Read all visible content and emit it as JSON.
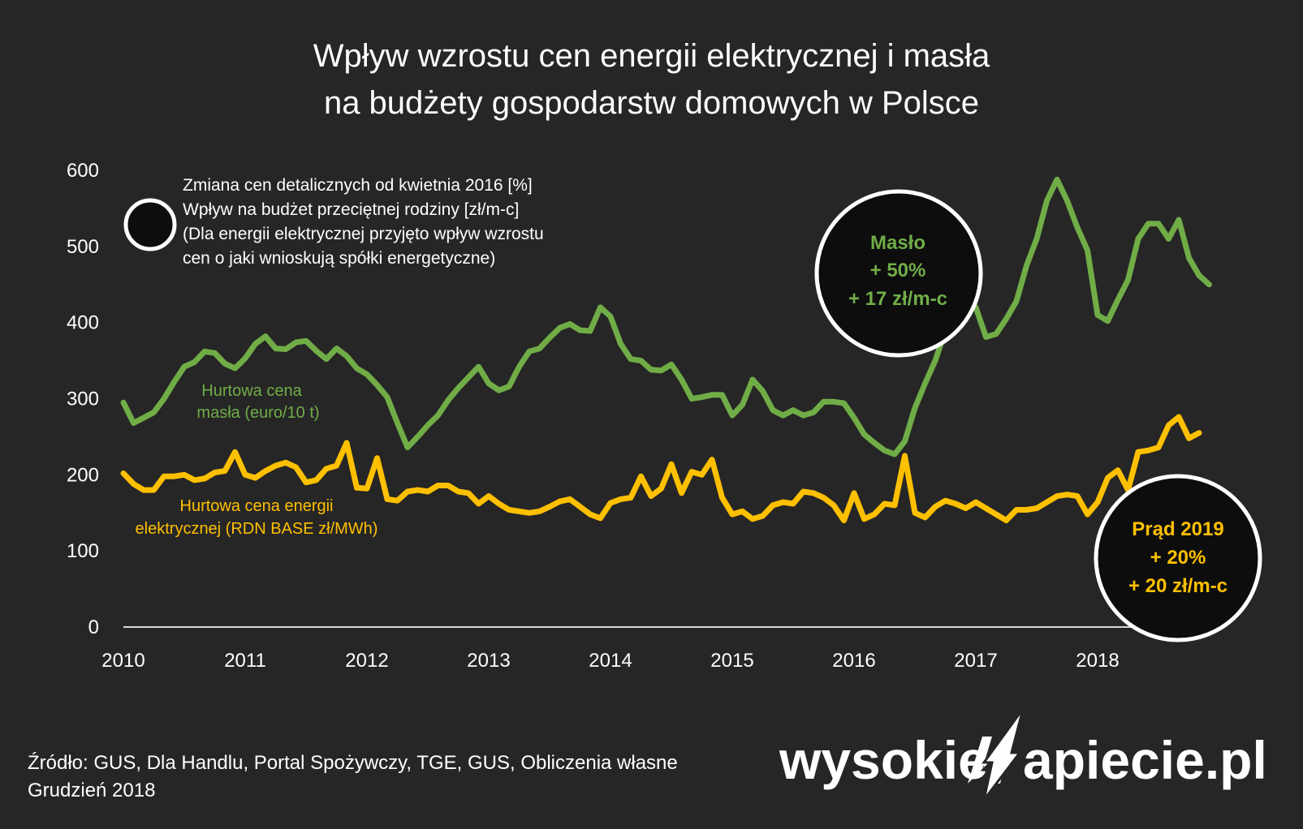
{
  "chart_data": {
    "type": "line",
    "title_line1": "Wpływ wzrostu cen energii elektrycznej i masła",
    "title_line2": "na budżety gospodarstw domowych w Polsce",
    "y_ticks": [
      "0",
      "100",
      "200",
      "300",
      "400",
      "500",
      "600"
    ],
    "x_ticks": [
      "2010",
      "2011",
      "2012",
      "2013",
      "2014",
      "2015",
      "2016",
      "2017",
      "2018"
    ],
    "ylim": [
      0,
      600
    ],
    "xlim": [
      2010,
      2019
    ],
    "colors": {
      "butter": "#70ad47",
      "energy": "#ffc000",
      "axis": "#d9d9d9"
    },
    "series": [
      {
        "name": "Hurtowa cena masła (euro/10 t)",
        "label_line1": "Hurtowa cena",
        "label_line2": "masła (euro/10 t)",
        "color": "#70ad47",
        "values": [
          295,
          268,
          275,
          282,
          300,
          322,
          342,
          348,
          362,
          360,
          346,
          340,
          353,
          372,
          382,
          366,
          365,
          374,
          376,
          363,
          352,
          366,
          356,
          340,
          332,
          318,
          302,
          268,
          236,
          250,
          265,
          278,
          298,
          314,
          328,
          342,
          320,
          311,
          316,
          342,
          362,
          366,
          380,
          393,
          398,
          390,
          389,
          420,
          408,
          372,
          352,
          350,
          338,
          337,
          345,
          325,
          300,
          302,
          305,
          305,
          278,
          292,
          325,
          310,
          285,
          278,
          285,
          278,
          282,
          296,
          296,
          294,
          275,
          253,
          242,
          232,
          227,
          244,
          288,
          320,
          350,
          390,
          410,
          435,
          420,
          381,
          385,
          405,
          428,
          475,
          510,
          560,
          588,
          560,
          525,
          495,
          410,
          402,
          430,
          456,
          510,
          530,
          530,
          510,
          535,
          485,
          462,
          450
        ]
      },
      {
        "name": "Hurtowa cena energii elektrycznej (RDN BASE zł/MWh)",
        "label_line1": "Hurtowa cena energii",
        "label_line2": "elektrycznej (RDN BASE zł/MWh)",
        "color": "#ffc000",
        "values": [
          202,
          188,
          180,
          180,
          198,
          198,
          200,
          193,
          195,
          203,
          205,
          230,
          200,
          196,
          205,
          212,
          216,
          210,
          190,
          193,
          208,
          212,
          242,
          183,
          182,
          222,
          168,
          166,
          178,
          180,
          178,
          186,
          186,
          178,
          176,
          162,
          172,
          162,
          154,
          152,
          150,
          152,
          158,
          165,
          168,
          158,
          148,
          143,
          163,
          168,
          170,
          198,
          172,
          182,
          214,
          176,
          204,
          200,
          220,
          170,
          148,
          152,
          142,
          146,
          160,
          164,
          162,
          178,
          176,
          170,
          160,
          140,
          176,
          142,
          148,
          162,
          160,
          225,
          150,
          144,
          158,
          166,
          162,
          156,
          164,
          156,
          148,
          140,
          154,
          154,
          156,
          164,
          172,
          174,
          172,
          148,
          164,
          196,
          206,
          180,
          230,
          232,
          236,
          265,
          276,
          248,
          255
        ]
      }
    ],
    "annotation_butter": {
      "line1": "Masło",
      "line2": "+ 50%",
      "line3": "+ 17 zł/m-c"
    },
    "annotation_energy": {
      "line1": "Prąd 2019",
      "line2": "+ 20%",
      "line3": "+ 20 zł/m-c"
    }
  },
  "legend": {
    "line1": "Zmiana cen detalicznych od kwietnia 2016 [%]",
    "line2": "Wpływ na budżet przeciętnej rodziny [zł/m-c]",
    "line3": "(Dla energii elektrycznej przyjęto wpływ wzrostu",
    "line4": "cen o jaki wnioskują spółki energetyczne)"
  },
  "source": {
    "line1": "Źródło: GUS, Dla Handlu, Portal Spożywczy, TGE, GUS, Obliczenia własne",
    "line2": "Grudzień 2018"
  },
  "logo": {
    "left": "wysokie",
    "right": "apiecie.pl",
    "icon": "lightning-n-icon"
  }
}
